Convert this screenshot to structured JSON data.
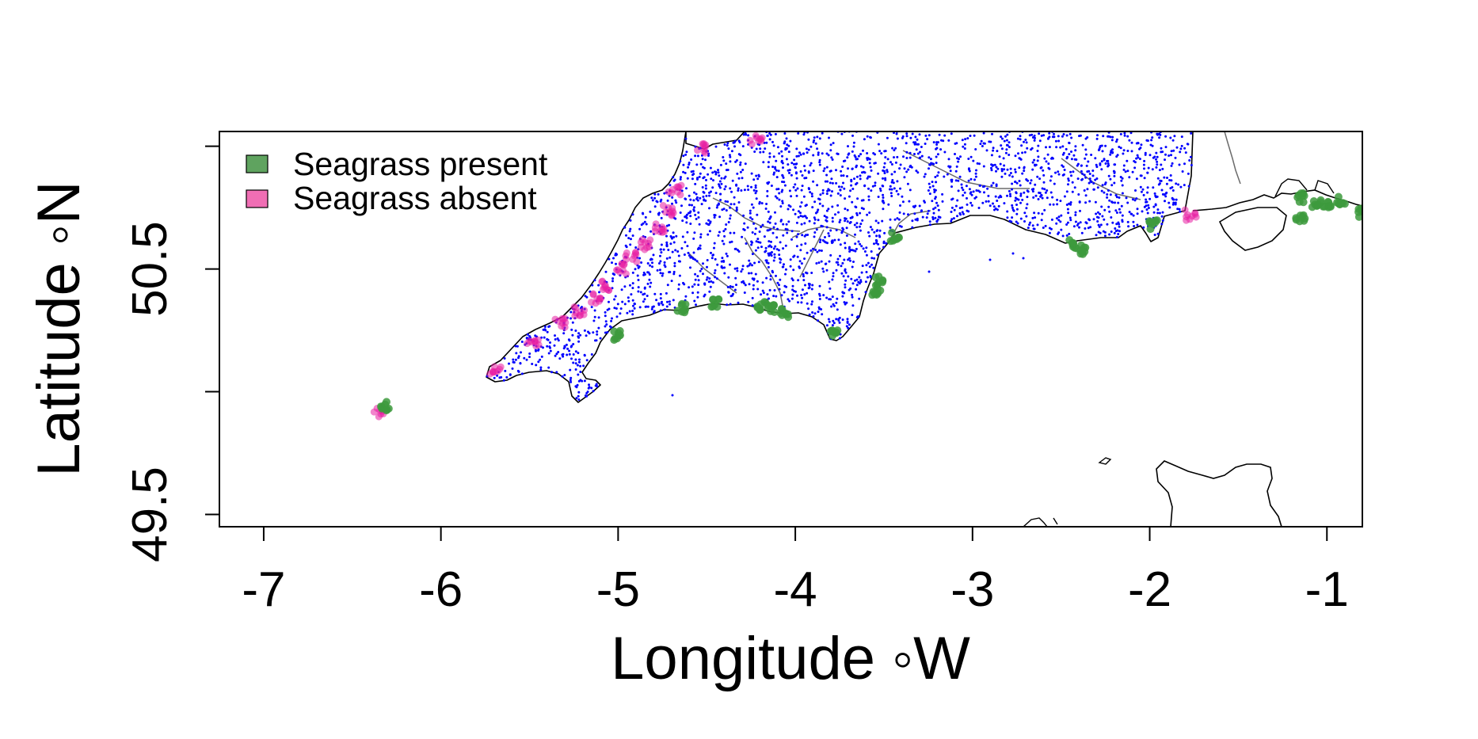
{
  "map": {
    "x_axis": {
      "label": "Longitude ◦W",
      "ticks": [
        "-7",
        "-6",
        "-5",
        "-4",
        "-3",
        "-2",
        "-1"
      ],
      "range": [
        -7.25,
        -0.8
      ]
    },
    "y_axis": {
      "label": "Latitude ◦N",
      "ticks": [
        "49.5",
        "50.5"
      ],
      "unlabeled_ticks": [
        50.0,
        51.0
      ],
      "range": [
        49.45,
        51.06
      ]
    },
    "legend": {
      "placement": "top-left",
      "items": [
        {
          "label": "Seagrass present",
          "color": "#5fa35f"
        },
        {
          "label": "Seagrass absent",
          "color": "#f06eb4"
        }
      ]
    },
    "colors": {
      "coastline": "#000000",
      "rivers": "#6b6b6b",
      "water_quality_points": "#0000ff",
      "present_points": "#3d9a3d",
      "absent_points": "#e81fa3"
    },
    "present_clusters": [
      {
        "lon": -6.32,
        "lat": 49.94
      },
      {
        "lon": -5.0,
        "lat": 50.23
      },
      {
        "lon": -4.64,
        "lat": 50.34
      },
      {
        "lon": -4.45,
        "lat": 50.36
      },
      {
        "lon": -4.19,
        "lat": 50.35
      },
      {
        "lon": -4.13,
        "lat": 50.34
      },
      {
        "lon": -4.06,
        "lat": 50.32
      },
      {
        "lon": -3.78,
        "lat": 50.24
      },
      {
        "lon": -3.53,
        "lat": 50.45
      },
      {
        "lon": -3.54,
        "lat": 50.41
      },
      {
        "lon": -3.44,
        "lat": 50.63
      },
      {
        "lon": -2.44,
        "lat": 50.6
      },
      {
        "lon": -2.37,
        "lat": 50.58
      },
      {
        "lon": -1.98,
        "lat": 50.68
      },
      {
        "lon": -1.15,
        "lat": 50.79
      },
      {
        "lon": -1.06,
        "lat": 50.77
      },
      {
        "lon": -1.0,
        "lat": 50.76
      },
      {
        "lon": -0.92,
        "lat": 50.78
      },
      {
        "lon": -1.15,
        "lat": 50.71
      },
      {
        "lon": -0.8,
        "lat": 50.73
      }
    ],
    "absent_clusters": [
      {
        "lon": -6.35,
        "lat": 49.92
      },
      {
        "lon": -5.69,
        "lat": 50.08
      },
      {
        "lon": -5.48,
        "lat": 50.2
      },
      {
        "lon": -5.33,
        "lat": 50.28
      },
      {
        "lon": -5.22,
        "lat": 50.33
      },
      {
        "lon": -5.12,
        "lat": 50.38
      },
      {
        "lon": -5.06,
        "lat": 50.43
      },
      {
        "lon": -4.99,
        "lat": 50.5
      },
      {
        "lon": -4.93,
        "lat": 50.55
      },
      {
        "lon": -4.85,
        "lat": 50.6
      },
      {
        "lon": -4.77,
        "lat": 50.67
      },
      {
        "lon": -4.72,
        "lat": 50.74
      },
      {
        "lon": -4.68,
        "lat": 50.82
      },
      {
        "lon": -4.52,
        "lat": 50.99
      },
      {
        "lon": -4.22,
        "lat": 51.03
      },
      {
        "lon": -1.77,
        "lat": 50.72
      }
    ]
  }
}
